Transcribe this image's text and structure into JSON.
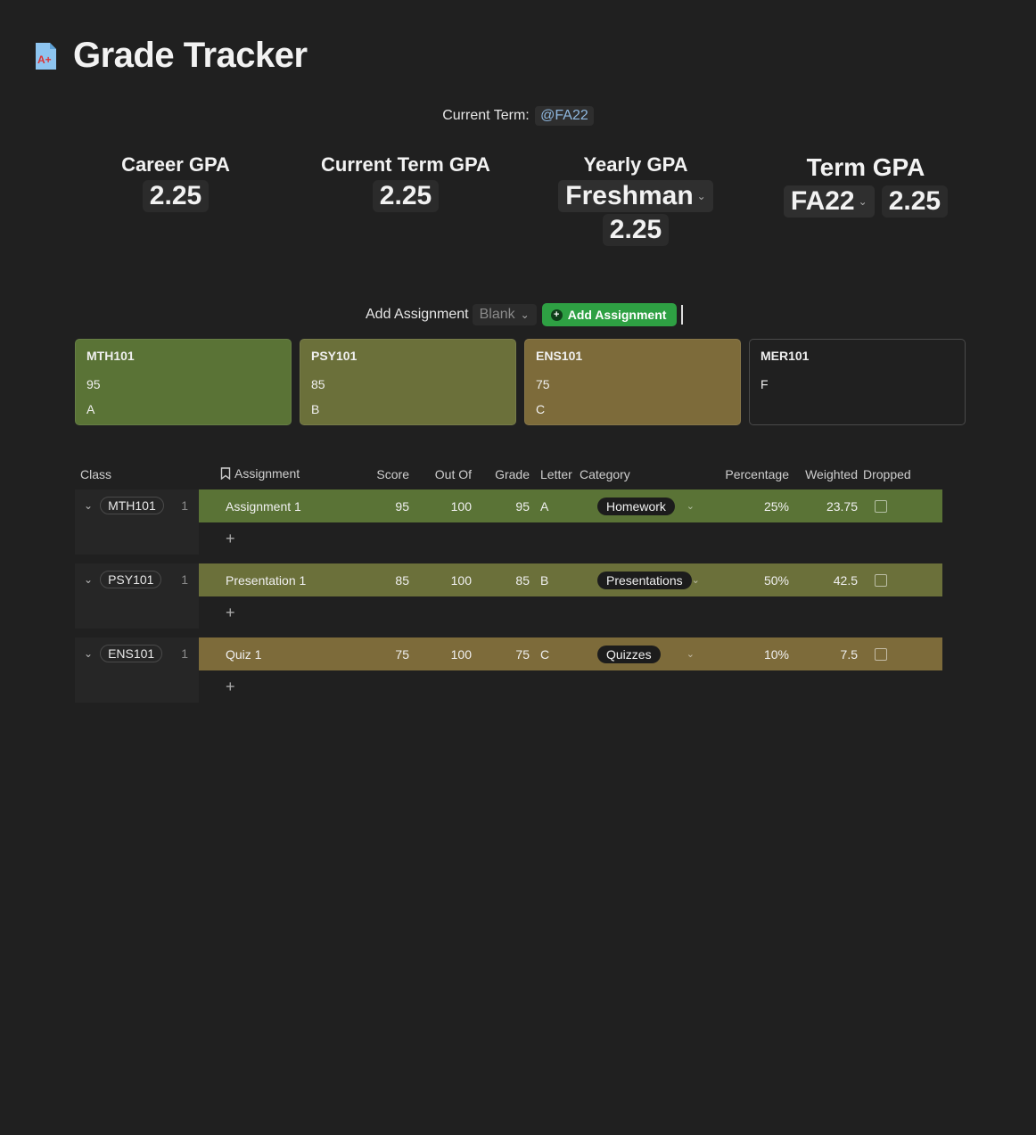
{
  "page": {
    "title": "Grade Tracker",
    "icon": "a-plus-document-icon"
  },
  "term_line": {
    "label": "Current Term:",
    "mention": "@FA22"
  },
  "gpa": {
    "career": {
      "title": "Career GPA",
      "value": "2.25"
    },
    "current_term": {
      "title": "Current Term GPA",
      "value": "2.25"
    },
    "yearly": {
      "title": "Yearly GPA",
      "select": "Freshman",
      "value": "2.25"
    },
    "term": {
      "title": "Term GPA",
      "select": "FA22",
      "value": "2.25"
    }
  },
  "add_assignment": {
    "label": "Add Assignment",
    "template": "Blank",
    "button": "Add Assignment"
  },
  "class_cards": [
    {
      "name": "MTH101",
      "score": "95",
      "letter": "A",
      "color": "#5a7336"
    },
    {
      "name": "PSY101",
      "score": "85",
      "letter": "B",
      "color": "#6b703a"
    },
    {
      "name": "ENS101",
      "score": "75",
      "letter": "C",
      "color": "#7d6b3a"
    },
    {
      "name": "MER101",
      "score": "F",
      "letter": "",
      "color": "#202020"
    }
  ],
  "table": {
    "headers": [
      "Class",
      "Assignment",
      "Score",
      "Out Of",
      "Grade",
      "Letter",
      "Category",
      "Percentage",
      "Weighted",
      "Dropped"
    ],
    "groups": [
      {
        "class": "MTH101",
        "count": "1",
        "color": "#5a7336",
        "row": {
          "assignment": "Assignment 1",
          "score": "95",
          "out_of": "100",
          "grade": "95",
          "letter": "A",
          "category": "Homework",
          "percentage": "25%",
          "weighted": "23.75",
          "dropped": false
        }
      },
      {
        "class": "PSY101",
        "count": "1",
        "color": "#6b703a",
        "row": {
          "assignment": "Presentation 1",
          "score": "85",
          "out_of": "100",
          "grade": "85",
          "letter": "B",
          "category": "Presentations",
          "percentage": "50%",
          "weighted": "42.5",
          "dropped": false
        }
      },
      {
        "class": "ENS101",
        "count": "1",
        "color": "#7d6b3a",
        "row": {
          "assignment": "Quiz 1",
          "score": "75",
          "out_of": "100",
          "grade": "75",
          "letter": "C",
          "category": "Quizzes",
          "percentage": "10%",
          "weighted": "7.5",
          "dropped": false
        }
      }
    ],
    "add_symbol": "+"
  }
}
